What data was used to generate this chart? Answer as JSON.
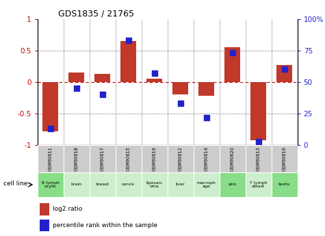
{
  "title": "GDS1835 / 21765",
  "samples": [
    "GSM90611",
    "GSM90618",
    "GSM90617",
    "GSM90615",
    "GSM90619",
    "GSM90612",
    "GSM90614",
    "GSM90620",
    "GSM90613",
    "GSM90616"
  ],
  "cell_lines": [
    "B lymph\nocyte",
    "brain",
    "breast",
    "cervix",
    "liposarc\noma",
    "liver",
    "macroph\nage",
    "skin",
    "T lymph\noblast",
    "testis"
  ],
  "log2_ratio": [
    -0.78,
    0.15,
    0.13,
    0.65,
    0.05,
    -0.2,
    -0.22,
    0.55,
    -0.92,
    0.27
  ],
  "percentile_rank": [
    13,
    45,
    40,
    83,
    57,
    33,
    22,
    73,
    3,
    60
  ],
  "bar_color": "#c0392b",
  "dot_color": "#2222cc",
  "ylim_left": [
    -1,
    1
  ],
  "ylim_right": [
    0,
    100
  ],
  "yticks_left": [
    -1,
    -0.5,
    0,
    0.5,
    1
  ],
  "yticks_right": [
    0,
    25,
    50,
    75,
    100
  ],
  "yticklabels_right": [
    "0",
    "25",
    "50",
    "75",
    "100%"
  ],
  "hlines_dotted": [
    0.5,
    -0.5
  ],
  "cell_line_bg_light": "#cceecc",
  "cell_line_bg_dark": "#88dd88",
  "sample_bg": "#cccccc",
  "highlighted_cells": [
    0,
    7,
    9
  ],
  "bar_width": 0.6,
  "dot_size": 35,
  "left_color": "#cc0000",
  "right_color": "#2222cc"
}
